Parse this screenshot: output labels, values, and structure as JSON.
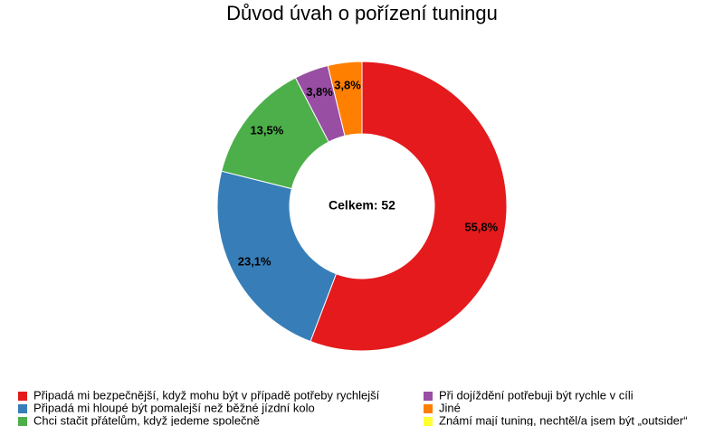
{
  "chart_data": {
    "type": "donut",
    "title": "Důvod úvah o pořízení tuningu",
    "center_label": "Celkem: 52",
    "categories": [
      "Připadá mi bezpečnější, když mohu být v případě potřeby rychlejší",
      "Připadá mi hloupé být pomalejší než běžné jízdní kolo",
      "Chci stačit přátelům, když jedeme společně",
      "Při dojíždění potřebuji být rychle v cíli",
      "Jiné",
      "Známí mají tuning, nechtěl/a jsem být „outsider“"
    ],
    "values": [
      55.8,
      23.1,
      13.5,
      3.8,
      3.8,
      0
    ],
    "value_labels": [
      "55,8%",
      "23,1%",
      "13,5%",
      "3,8%",
      "3,8%",
      null
    ],
    "colors": [
      "#e41a1c",
      "#377eb8",
      "#4daf4a",
      "#984ea3",
      "#ff7f00",
      "#ffff33"
    ]
  }
}
